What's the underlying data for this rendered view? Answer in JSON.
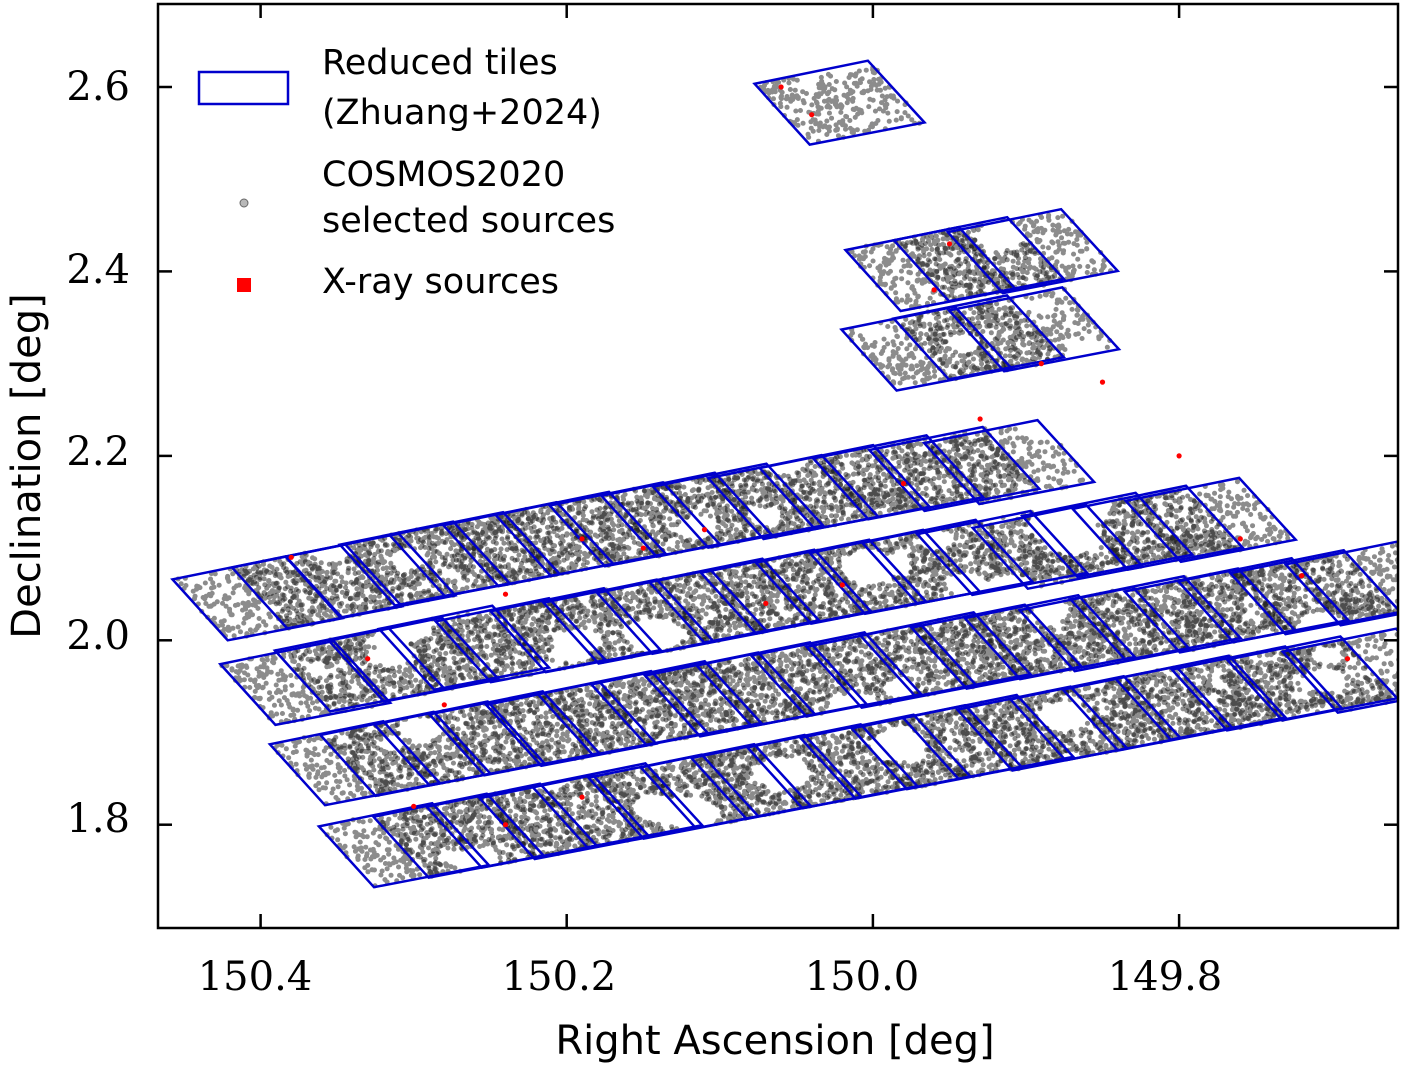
{
  "chart_data": {
    "type": "scatter",
    "xlabel": "Right Ascension [deg]",
    "ylabel": "Declination [deg]",
    "xlim": [
      150.467,
      149.657
    ],
    "ylim": [
      1.688,
      2.69
    ],
    "x_inverted": true,
    "x_ticks": [
      150.4,
      150.2,
      150.0,
      149.8
    ],
    "x_tick_labels": [
      "150.4",
      "150.2",
      "150.0",
      "149.8"
    ],
    "y_ticks": [
      1.8,
      2.0,
      2.2,
      2.4,
      2.6
    ],
    "y_tick_labels": [
      "1.8",
      "2.0",
      "2.2",
      "2.4",
      "2.6"
    ],
    "grid": false,
    "legend_position": "top-left",
    "legend": [
      {
        "label_lines": [
          "Reduced tiles",
          "(Zhuang+2024)"
        ],
        "marker": "rectangle-outline",
        "color": "#0000cc"
      },
      {
        "label_lines": [
          "COSMOS2020",
          "selected sources"
        ],
        "marker": "circle",
        "color": "#888888"
      },
      {
        "label_lines": [
          "X-ray sources"
        ],
        "marker": "square",
        "color": "#ff0000"
      }
    ],
    "series": [
      {
        "name": "Reduced tiles (Zhuang+2024)",
        "kind": "tile-outlines",
        "color": "#0000cc",
        "tile_shape_deg": {
          "note": "parallelogram, corner offsets from lower-left corner in RA/Dec",
          "offsets": [
            [
              0,
              0
            ],
            [
              -0.075,
              0.024
            ],
            [
              -0.038,
              0.091
            ],
            [
              0.036,
              0.066
            ]
          ]
        },
        "tile_corners": [
          [
            150.4215,
            2.0
          ],
          [
            150.3826,
            2.0129
          ],
          [
            150.3478,
            2.0247
          ],
          [
            150.3122,
            2.0377
          ],
          [
            150.2796,
            2.0478
          ],
          [
            150.2446,
            2.0587
          ],
          [
            150.2104,
            2.0699
          ],
          [
            150.1751,
            2.0802
          ],
          [
            150.1413,
            2.0907
          ],
          [
            150.1076,
            2.1005
          ],
          [
            150.0715,
            2.1098
          ],
          [
            150.0379,
            2.1207
          ],
          [
            150.003,
            2.1312
          ],
          [
            149.9663,
            2.1403
          ],
          [
            149.9305,
            2.1478
          ],
          [
            150.3903,
            1.9082
          ],
          [
            150.3546,
            1.9229
          ],
          [
            150.3194,
            1.9335
          ],
          [
            150.2866,
            1.9464
          ],
          [
            150.2496,
            1.9545
          ],
          [
            150.2137,
            1.9654
          ],
          [
            150.1792,
            1.9748
          ],
          [
            150.1441,
            1.9854
          ],
          [
            150.1102,
            1.9975
          ],
          [
            150.0763,
            2.0072
          ],
          [
            150.0404,
            2.0181
          ],
          [
            150.0052,
            2.0287
          ],
          [
            149.9709,
            2.0396
          ],
          [
            149.9351,
            2.0492
          ],
          [
            149.8988,
            2.0559
          ],
          [
            149.8664,
            2.0688
          ],
          [
            149.8335,
            2.0765
          ],
          [
            149.7988,
            2.0851
          ],
          [
            150.3579,
            1.8212
          ],
          [
            150.3249,
            1.8313
          ],
          [
            150.2896,
            1.8426
          ],
          [
            150.2537,
            1.8536
          ],
          [
            150.2166,
            1.8639
          ],
          [
            150.1829,
            1.8756
          ],
          [
            150.1479,
            1.8862
          ],
          [
            150.1129,
            1.8958
          ],
          [
            150.0791,
            1.9067
          ],
          [
            150.0435,
            1.9175
          ],
          [
            150.0073,
            1.9269
          ],
          [
            149.9722,
            1.9392
          ],
          [
            149.9388,
            1.9476
          ],
          [
            149.9039,
            1.9579
          ],
          [
            149.8682,
            1.9666
          ],
          [
            149.8349,
            1.9784
          ],
          [
            149.7995,
            1.9869
          ],
          [
            149.7645,
            1.9979
          ],
          [
            149.7305,
            2.0067
          ],
          [
            149.6944,
            2.0163
          ],
          [
            150.3259,
            1.7322
          ],
          [
            150.2902,
            1.7426
          ],
          [
            150.2555,
            1.7534
          ],
          [
            150.2209,
            1.7628
          ],
          [
            150.1866,
            1.7755
          ],
          [
            150.1498,
            1.785
          ],
          [
            150.1156,
            1.7962
          ],
          [
            150.0826,
            1.8063
          ],
          [
            150.046,
            1.8178
          ],
          [
            150.0114,
            1.8283
          ],
          [
            149.9778,
            1.8385
          ],
          [
            149.9441,
            1.8497
          ],
          [
            149.9089,
            1.8588
          ],
          [
            149.8741,
            1.8699
          ],
          [
            149.8399,
            1.8805
          ],
          [
            149.8055,
            1.8923
          ],
          [
            149.7687,
            1.9023
          ],
          [
            149.7326,
            1.9131
          ],
          [
            149.6963,
            1.9216
          ],
          [
            149.9845,
            2.2709
          ],
          [
            149.9504,
            2.283
          ],
          [
            149.9143,
            2.2917
          ],
          [
            149.9819,
            2.3571
          ],
          [
            149.9503,
            2.3678
          ],
          [
            149.9151,
            2.3765
          ],
          [
            150.0413,
            2.5375
          ]
        ]
      },
      {
        "name": "COSMOS2020 selected sources",
        "kind": "dense-scatter",
        "color": "#000000",
        "note": "tens of thousands of points filling each tile, with masked holes around bright stars"
      },
      {
        "name": "X-ray sources",
        "kind": "scatter",
        "color": "#ff0000",
        "points_sample": [
          [
            150.38,
            2.09
          ],
          [
            150.33,
            1.98
          ],
          [
            150.28,
            1.93
          ],
          [
            150.24,
            2.05
          ],
          [
            150.19,
            2.11
          ],
          [
            150.15,
            2.1
          ],
          [
            150.11,
            2.12
          ],
          [
            150.07,
            2.04
          ],
          [
            150.02,
            2.06
          ],
          [
            149.98,
            2.17
          ],
          [
            149.93,
            2.24
          ],
          [
            149.89,
            2.3
          ],
          [
            149.85,
            2.28
          ],
          [
            149.8,
            2.2
          ],
          [
            149.76,
            2.11
          ],
          [
            149.72,
            2.07
          ],
          [
            149.69,
            1.98
          ],
          [
            150.3,
            1.82
          ],
          [
            150.24,
            1.8
          ],
          [
            150.19,
            1.83
          ],
          [
            149.95,
            2.43
          ],
          [
            149.96,
            2.38
          ],
          [
            150.06,
            2.6
          ],
          [
            150.04,
            2.57
          ]
        ]
      }
    ]
  }
}
